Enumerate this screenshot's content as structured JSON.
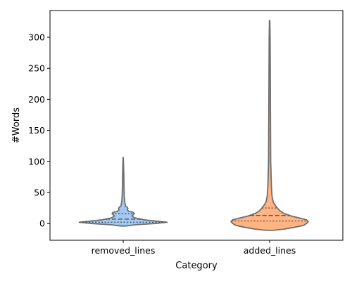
{
  "chart_data": {
    "type": "violin",
    "xlabel": "Category",
    "ylabel": "#Words",
    "ylim": [
      -27,
      343
    ],
    "yticks": [
      0,
      50,
      100,
      150,
      200,
      250,
      300
    ],
    "categories": [
      "removed_lines",
      "added_lines"
    ],
    "violins": [
      {
        "name": "removed_lines",
        "color": "#a1c9f4",
        "min": -4,
        "max": 106,
        "quartiles": [
          2,
          7,
          16
        ],
        "profile": [
          [
            -4,
            0.04
          ],
          [
            -2,
            0.22
          ],
          [
            0,
            0.55
          ],
          [
            2,
            0.75
          ],
          [
            4,
            0.55
          ],
          [
            6,
            0.36
          ],
          [
            8,
            0.24
          ],
          [
            10,
            0.18
          ],
          [
            12,
            0.15
          ],
          [
            14,
            0.17
          ],
          [
            16,
            0.19
          ],
          [
            18,
            0.17
          ],
          [
            20,
            0.09
          ],
          [
            22,
            0.07
          ],
          [
            24,
            0.08
          ],
          [
            26,
            0.07
          ],
          [
            28,
            0.04
          ],
          [
            35,
            0.025
          ],
          [
            45,
            0.017
          ],
          [
            60,
            0.013
          ],
          [
            75,
            0.011
          ],
          [
            90,
            0.007
          ],
          [
            100,
            0.004
          ],
          [
            106,
            0.002
          ]
        ]
      },
      {
        "name": "added_lines",
        "color": "#ffb482",
        "min": -11,
        "max": 327,
        "quartiles": [
          4,
          13,
          25
        ],
        "profile": [
          [
            -11,
            0.06
          ],
          [
            -9,
            0.25
          ],
          [
            -6,
            0.43
          ],
          [
            -3,
            0.58
          ],
          [
            0,
            0.63
          ],
          [
            3,
            0.66
          ],
          [
            6,
            0.63
          ],
          [
            9,
            0.5
          ],
          [
            12,
            0.37
          ],
          [
            16,
            0.25
          ],
          [
            20,
            0.18
          ],
          [
            25,
            0.13
          ],
          [
            30,
            0.09
          ],
          [
            35,
            0.06
          ],
          [
            45,
            0.04
          ],
          [
            60,
            0.03
          ],
          [
            80,
            0.024
          ],
          [
            100,
            0.018
          ],
          [
            140,
            0.016
          ],
          [
            180,
            0.014
          ],
          [
            220,
            0.012
          ],
          [
            260,
            0.01
          ],
          [
            300,
            0.008
          ],
          [
            327,
            0.003
          ]
        ]
      }
    ]
  }
}
